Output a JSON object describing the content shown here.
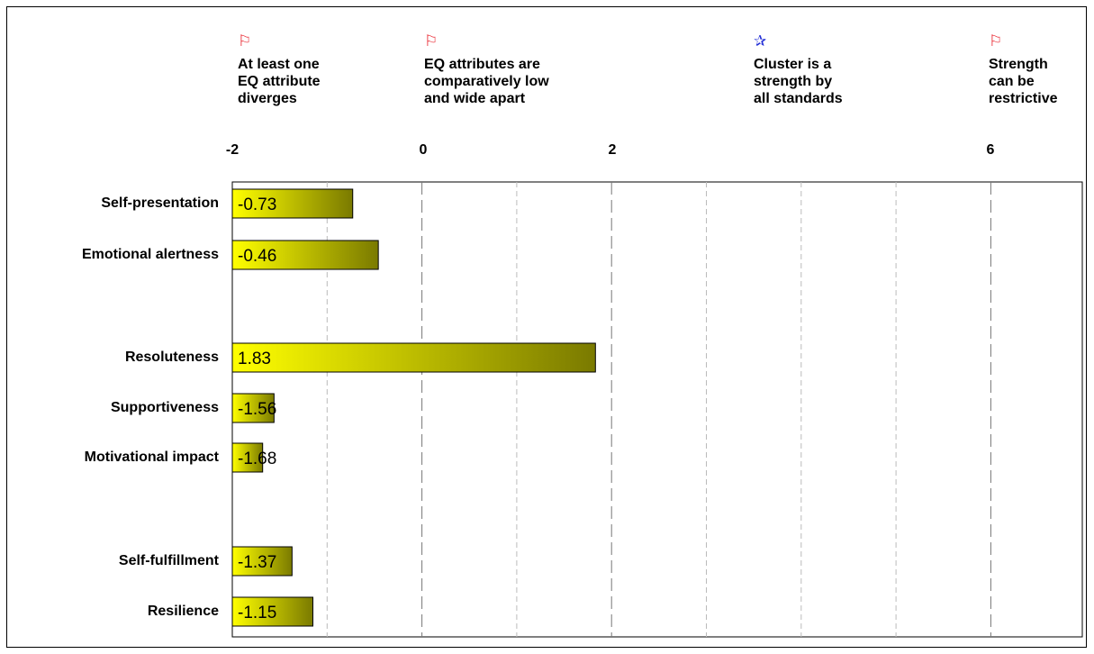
{
  "headers": [
    {
      "icon": "flag-icon",
      "text": "At least one\nEQ attribute\ndiverges"
    },
    {
      "icon": "flag-icon",
      "text": "EQ attributes are\ncomparatively low\nand wide apart"
    },
    {
      "icon": "star-icon",
      "text": "Cluster is a\nstrength by\nall standards"
    },
    {
      "icon": "flag-icon",
      "text": "Strength\ncan be\nrestrictive"
    }
  ],
  "chart_data": {
    "type": "bar",
    "orientation": "horizontal",
    "xlim": [
      -2,
      7
    ],
    "tick_labels": [
      "-2",
      "0",
      "2",
      "6"
    ],
    "tick_values": [
      -2,
      0,
      2,
      6
    ],
    "grid": true,
    "categories": [
      "Self-presentation",
      "Emotional alertness",
      "Resoluteness",
      "Supportiveness",
      "Motivational impact",
      "Self-fulfillment",
      "Resilience"
    ],
    "values": [
      -0.73,
      -0.46,
      1.83,
      -1.56,
      -1.68,
      -1.37,
      -1.15
    ],
    "value_labels": [
      "-0.73",
      "-0.46",
      "1.83",
      "-1.56",
      "-1.68",
      "-1.37",
      "-1.15"
    ],
    "bar_color_start": "#ffff00",
    "bar_color_end": "#7a7a00"
  }
}
